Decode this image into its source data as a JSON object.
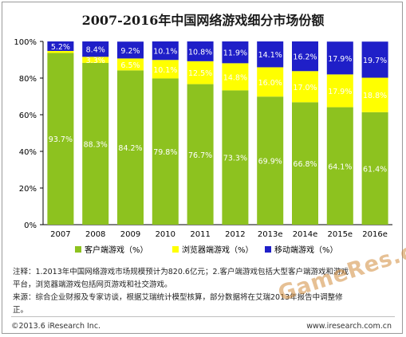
{
  "title": "2007-2016年中国网络游戏细分市场份额",
  "colors": {
    "client": "#8dc21f",
    "browser": "#ffff00",
    "mobile": "#1f1fc8",
    "data_label": "#ffffff"
  },
  "chart_data": {
    "type": "bar",
    "stacked": true,
    "percent_stacked": true,
    "categories": [
      "2007",
      "2008",
      "2009",
      "2010",
      "2011",
      "2012",
      "2013e",
      "2014e",
      "2015e",
      "2016e"
    ],
    "series": [
      {
        "name": "客户端游戏（%）",
        "color": "#8dc21f",
        "values": [
          93.7,
          88.3,
          84.2,
          79.8,
          76.7,
          73.3,
          69.9,
          66.8,
          64.1,
          61.4
        ],
        "labels": [
          "93.7%",
          "88.3%",
          "84.2%",
          "79.8%",
          "76.7%",
          "73.3%",
          "69.9%",
          "66.8%",
          "64.1%",
          "61.4%"
        ]
      },
      {
        "name": "浏览器端游戏（%）",
        "color": "#ffff00",
        "values": [
          1.1,
          3.3,
          6.5,
          10.1,
          12.5,
          14.8,
          16.0,
          17.0,
          17.9,
          18.8
        ],
        "labels": [
          "",
          "3.3%",
          "6.5%",
          "10.1%",
          "12.5%",
          "14.8%",
          "16.0%",
          "17.0%",
          "17.9%",
          "18.8%"
        ]
      },
      {
        "name": "移动端游戏（%）",
        "color": "#1f1fc8",
        "values": [
          5.2,
          8.4,
          9.2,
          10.1,
          10.8,
          11.9,
          14.1,
          16.2,
          17.9,
          19.7
        ],
        "labels": [
          "5.2%",
          "8.4%",
          "9.2%",
          "10.1%",
          "10.8%",
          "11.9%",
          "14.1%",
          "16.2%",
          "17.9%",
          "19.7%"
        ]
      }
    ],
    "ylim": [
      0,
      100
    ],
    "yticks": [
      "0%",
      "20%",
      "40%",
      "60%",
      "80%",
      "100%"
    ],
    "ytick_values": [
      0,
      20,
      40,
      60,
      80,
      100
    ],
    "grid": false,
    "legend_position": "bottom"
  },
  "notes": {
    "line1": "注释：1.2013年中国网络游戏市场规模预计为820.6亿元；2.客户端游戏包括大型客户端游戏和游戏",
    "line2": "平台，浏览器端游戏包括网页游戏和社交游戏。",
    "line3": "来源：综合企业财报及专家访谈，根据艾瑞统计模型核算，部分数据将在艾瑞2013年报告中调整修",
    "line4": "正。"
  },
  "footer": {
    "copyright": "©2013.6 iResearch Inc.",
    "website": "www.iresearch.com.cn"
  },
  "watermark": "GameRes.com"
}
